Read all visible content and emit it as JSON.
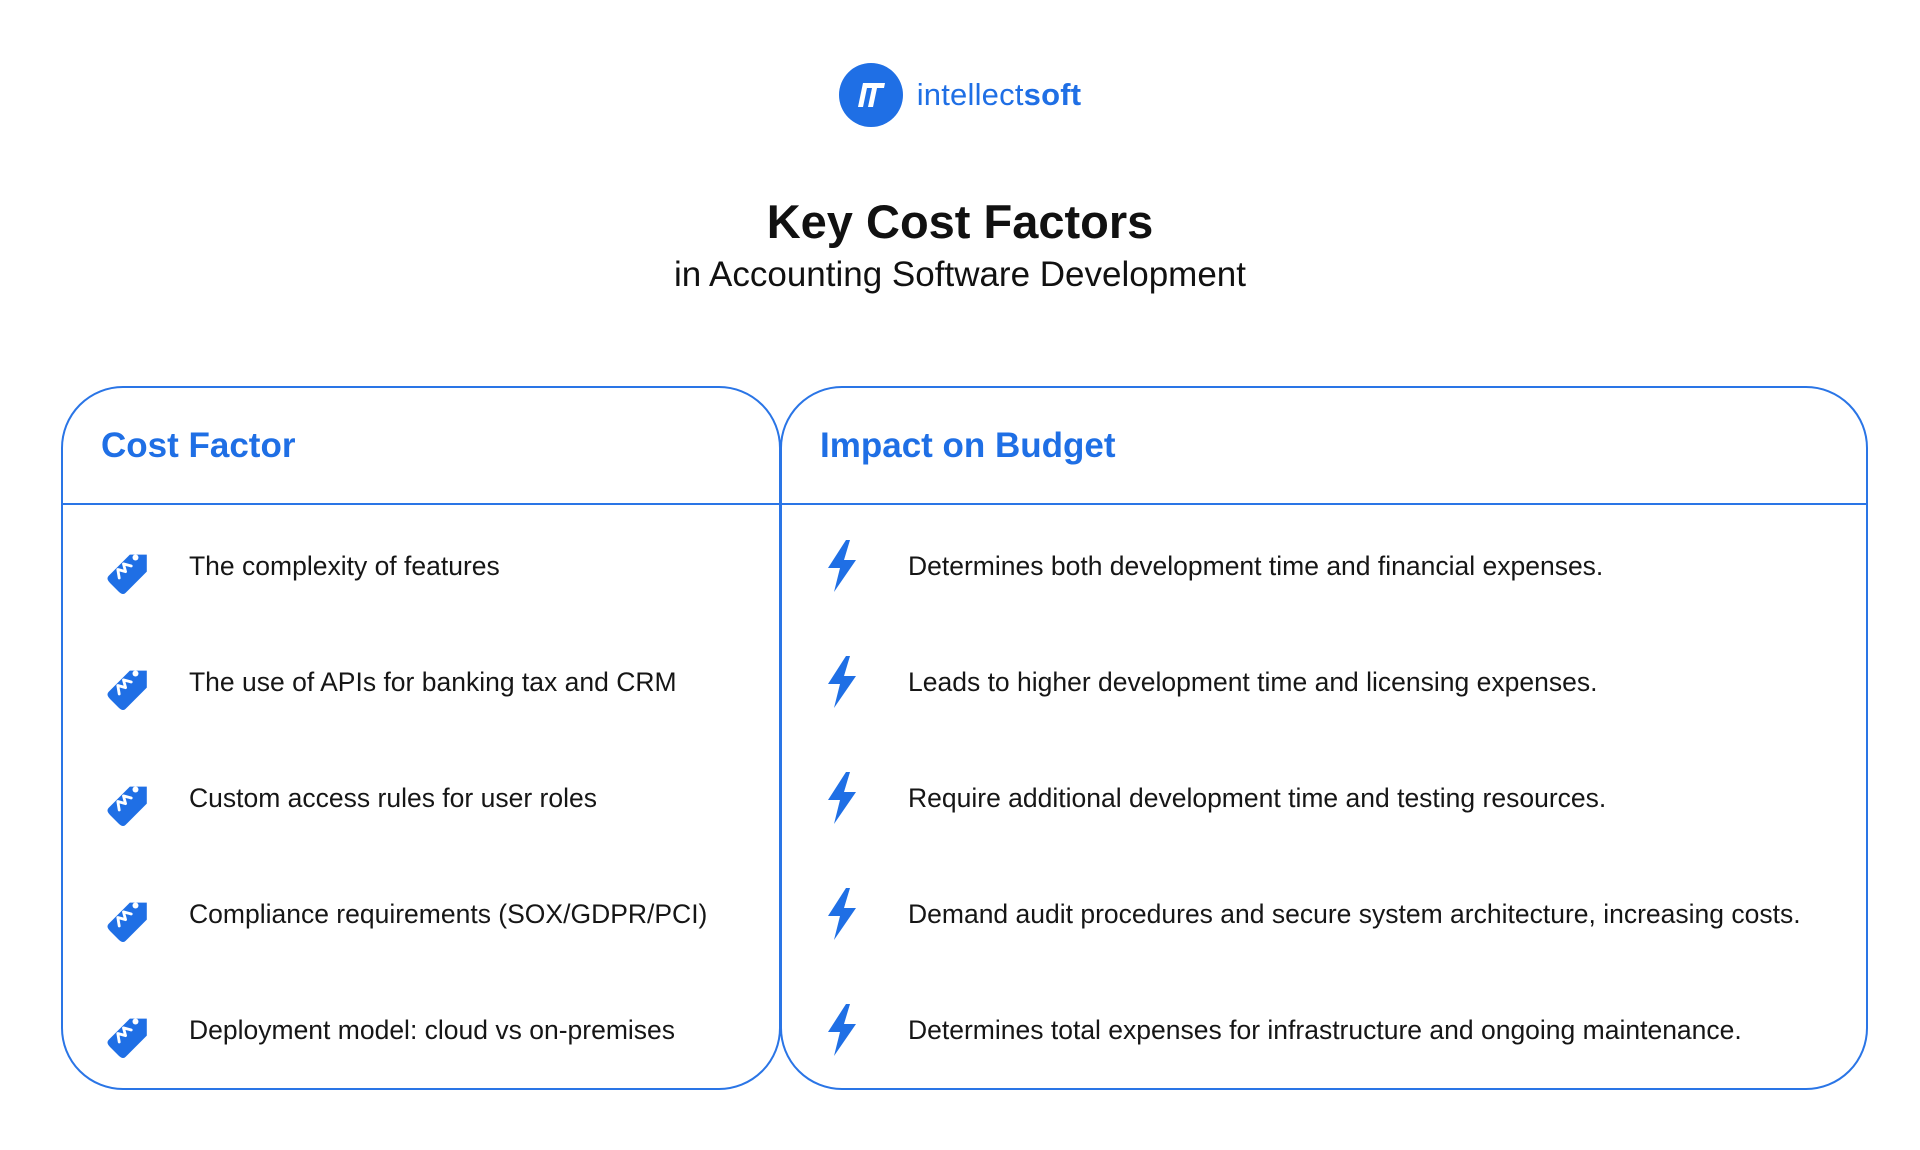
{
  "brand": {
    "name_light": "intellect",
    "name_bold": "soft",
    "color": "#1f6fe5",
    "icon": "intellectsoft-logo-mark"
  },
  "title": "Key Cost Factors",
  "subtitle": "in Accounting Software Development",
  "table": {
    "left_header": "Cost Factor",
    "right_header": "Impact on Budget",
    "border_color": "#2a75e6",
    "rows": [
      {
        "factor": "The complexity of features",
        "factor_icon": "price-tag-icon",
        "impact": "Determines both development time and financial expenses.",
        "impact_icon": "lightning-icon"
      },
      {
        "factor": "The use of APIs for banking tax and CRM",
        "factor_icon": "price-tag-icon",
        "impact": "Leads to higher development time and licensing expenses.",
        "impact_icon": "lightning-icon"
      },
      {
        "factor": "Custom access rules for user roles",
        "factor_icon": "price-tag-icon",
        "impact": "Require additional development time and testing resources.",
        "impact_icon": "lightning-icon"
      },
      {
        "factor": "Compliance requirements (SOX/GDPR/PCI)",
        "factor_icon": "price-tag-icon",
        "impact": "Demand audit procedures and secure system architecture, increasing costs.",
        "impact_icon": "lightning-icon"
      },
      {
        "factor": "Deployment model: cloud vs on-premises",
        "factor_icon": "price-tag-icon",
        "impact": "Determines total expenses for infrastructure and ongoing maintenance.",
        "impact_icon": "lightning-icon"
      }
    ]
  }
}
